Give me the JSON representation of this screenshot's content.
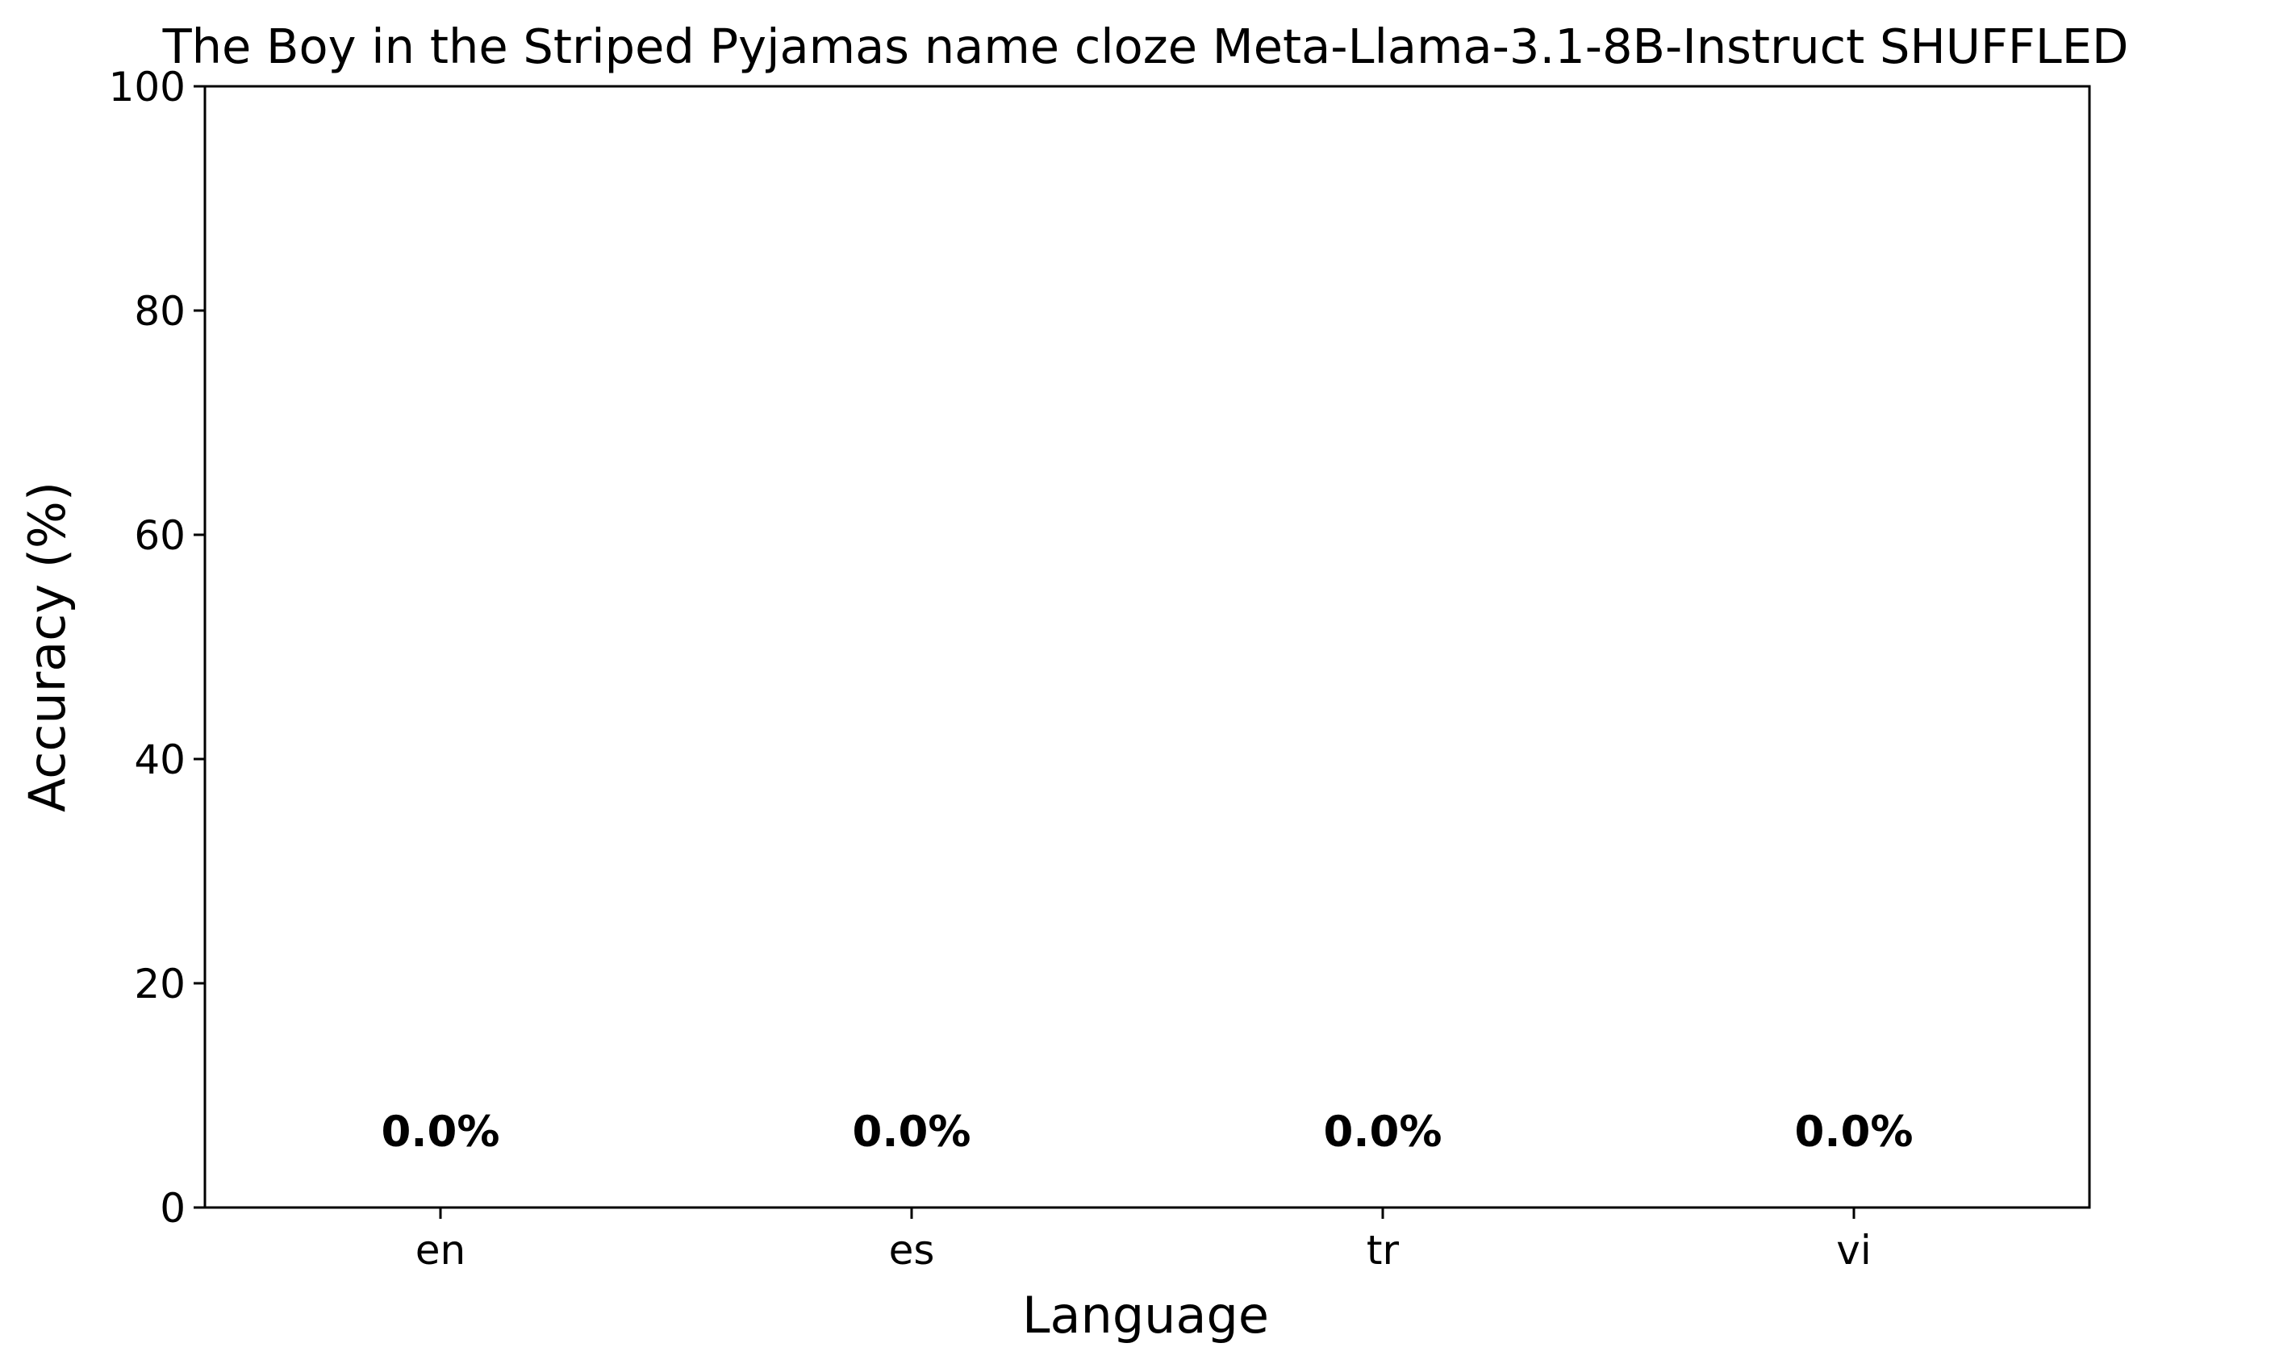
{
  "chart_data": {
    "type": "bar",
    "title": "The Boy in the Striped Pyjamas name cloze Meta-Llama-3.1-8B-Instruct SHUFFLED",
    "xlabel": "Language",
    "ylabel": "Accuracy (%)",
    "categories": [
      "en",
      "es",
      "tr",
      "vi"
    ],
    "values": [
      0.0,
      0.0,
      0.0,
      0.0
    ],
    "data_labels": [
      "0.0%",
      "0.0%",
      "0.0%",
      "0.0%"
    ],
    "ylim": [
      0,
      100
    ],
    "yticks": [
      0,
      20,
      40,
      60,
      80,
      100
    ],
    "ytick_labels": [
      "0",
      "20",
      "40",
      "60",
      "80",
      "100"
    ],
    "bar_color": "#1f77b4",
    "grid": false,
    "legend": "none"
  }
}
